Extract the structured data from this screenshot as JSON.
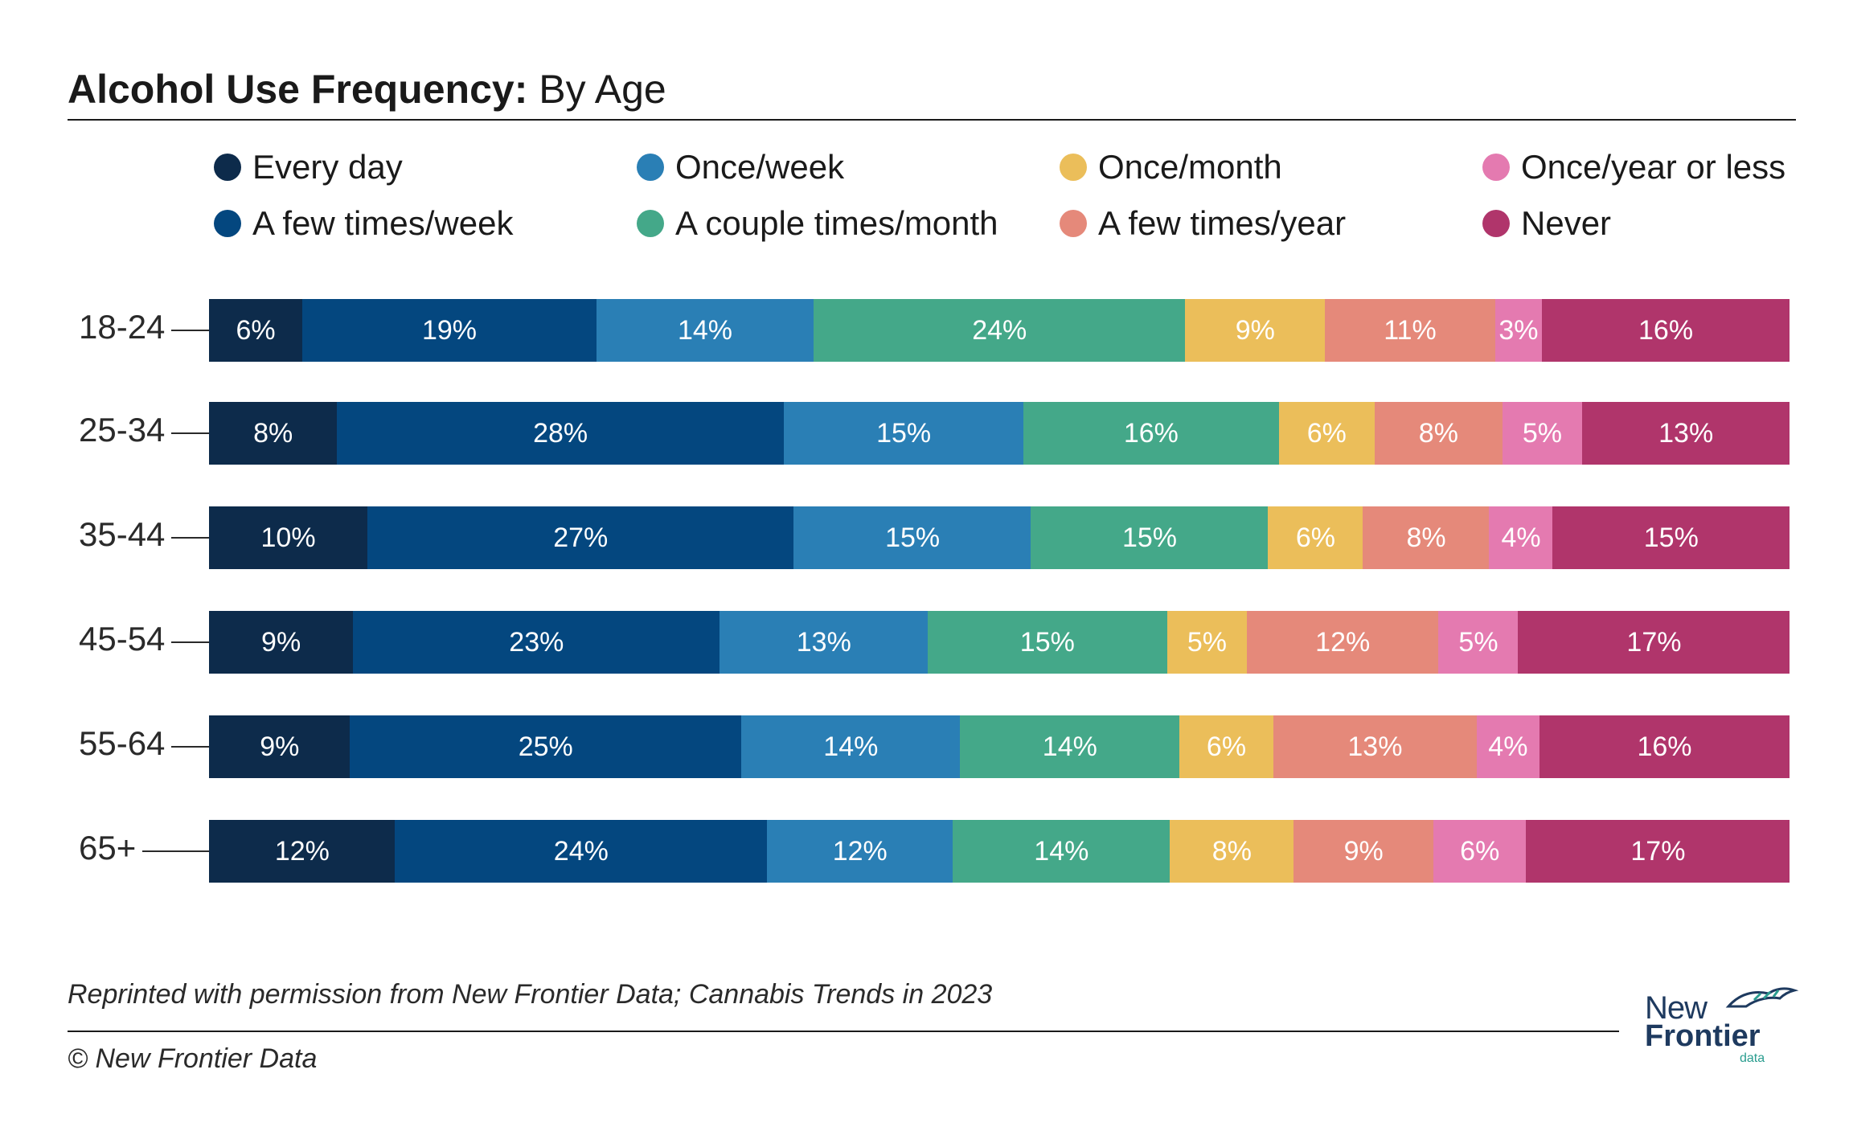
{
  "title": {
    "bold": "Alcohol Use Frequency:",
    "rest": " By Age"
  },
  "legend": [
    {
      "label": "Every day",
      "color": "#0d2b4b"
    },
    {
      "label": "Once/week",
      "color": "#2a7fb5"
    },
    {
      "label": "Once/month",
      "color": "#ebbe5a"
    },
    {
      "label": "Once/year or less",
      "color": "#e47ab0"
    },
    {
      "label": "A few times/week",
      "color": "#04477f"
    },
    {
      "label": "A couple times/month",
      "color": "#44a889"
    },
    {
      "label": "A few times/year",
      "color": "#e5897a"
    },
    {
      "label": "Never",
      "color": "#b0356b"
    }
  ],
  "chart_data": {
    "type": "bar",
    "orientation": "horizontal",
    "stacked": true,
    "title": "Alcohol Use Frequency: By Age",
    "categories": [
      "18-24",
      "25-34",
      "35-44",
      "45-54",
      "55-64",
      "65+"
    ],
    "series": [
      {
        "name": "Every day",
        "color": "#0d2b4b",
        "values": [
          6,
          8,
          10,
          9,
          9,
          12
        ],
        "labels": [
          "6%",
          "8%",
          "10%",
          "9%",
          "9%",
          "12%"
        ]
      },
      {
        "name": "A few times/week",
        "color": "#04477f",
        "values": [
          19,
          28,
          27,
          23,
          25,
          24
        ],
        "labels": [
          "19%",
          "28%",
          "27%",
          "23%",
          "25%",
          "24%"
        ]
      },
      {
        "name": "Once/week",
        "color": "#2a7fb5",
        "values": [
          14,
          15,
          15,
          13,
          14,
          12
        ],
        "labels": [
          "14%",
          "15%",
          "15%",
          "13%",
          "14%",
          "12%"
        ]
      },
      {
        "name": "A couple times/month",
        "color": "#44a889",
        "values": [
          24,
          16,
          15,
          15,
          14,
          14
        ],
        "labels": [
          "24%",
          "16%",
          "15%",
          "15%",
          "14%",
          "14%"
        ]
      },
      {
        "name": "Once/month",
        "color": "#ebbe5a",
        "values": [
          9,
          6,
          6,
          5,
          6,
          8
        ],
        "labels": [
          "9%",
          "6%",
          "6%",
          "5%",
          "6%",
          "8%"
        ]
      },
      {
        "name": "A few times/year",
        "color": "#e5897a",
        "values": [
          11,
          8,
          8,
          12,
          13,
          9
        ],
        "labels": [
          "11%",
          "8%",
          "8%",
          "12%",
          "13%",
          "9%"
        ]
      },
      {
        "name": "Once/year or less",
        "color": "#e47ab0",
        "values": [
          3,
          5,
          4,
          5,
          4,
          6
        ],
        "labels": [
          "3%",
          "5%",
          "4%",
          "5%",
          "4%",
          "6%"
        ]
      },
      {
        "name": "Never",
        "color": "#b0356b",
        "values": [
          16,
          13,
          15,
          17,
          16,
          17
        ],
        "labels": [
          "16%",
          "13%",
          "15%",
          "17%",
          "16%",
          "17%"
        ]
      }
    ],
    "legend_position": "top",
    "grid": false
  },
  "footer": {
    "source": "Reprinted with permission from New Frontier Data; Cannabis Trends in 2023",
    "copyright": "© New Frontier Data"
  },
  "logo": {
    "line1": "New",
    "line2": "Frontier",
    "line3": "data"
  }
}
